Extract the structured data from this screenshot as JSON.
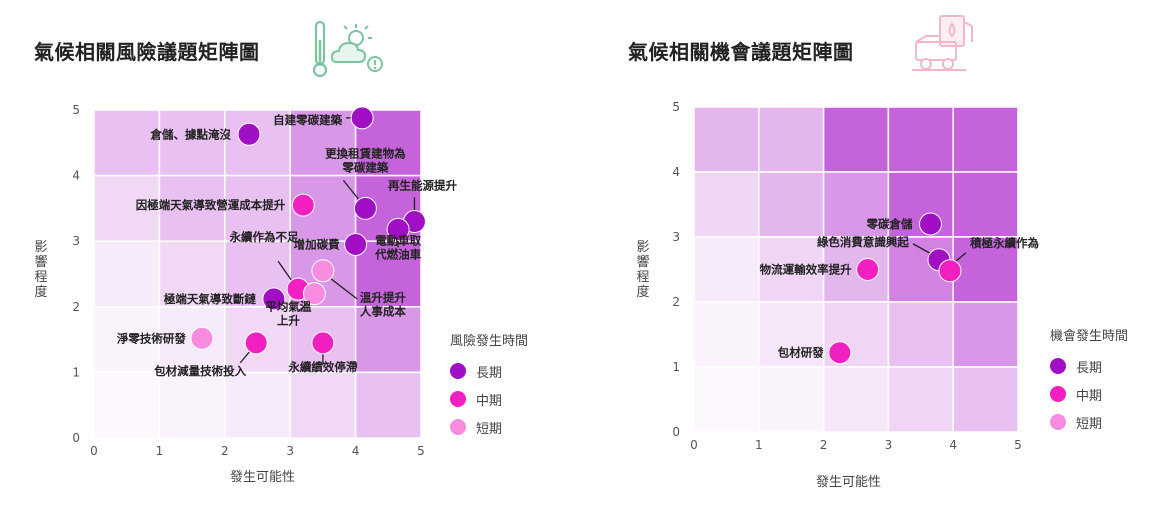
{
  "chart_data": [
    {
      "type": "scatter",
      "title": "氣候相關風險議題矩陣圖",
      "xlabel": "發生可能性",
      "ylabel": "影響程度",
      "xlim": [
        0,
        5
      ],
      "ylim": [
        0,
        5
      ],
      "x_ticks": [
        "0",
        "1",
        "2",
        "3",
        "4",
        "5"
      ],
      "y_ticks": [
        "0",
        "1",
        "2",
        "3",
        "4",
        "5"
      ],
      "legend_title": "風險發生時間",
      "legend": [
        {
          "name": "長期",
          "color": "#a10fc4"
        },
        {
          "name": "中期",
          "color": "#f21fc1"
        },
        {
          "name": "短期",
          "color": "#f78ce0"
        }
      ],
      "points": [
        {
          "label": "倉儲、據點淹沒",
          "x": 2.37,
          "y": 4.63,
          "term": "長期"
        },
        {
          "label": "自建零碳建築",
          "x": 4.1,
          "y": 4.88,
          "term": "長期"
        },
        {
          "label": "更換租賃建物為\n零碳建築",
          "x": 4.15,
          "y": 3.5,
          "term": "長期"
        },
        {
          "label": "再生能源提升",
          "x": 4.9,
          "y": 3.3,
          "term": "長期"
        },
        {
          "label": "電動車取\n代燃油車",
          "x": 4.65,
          "y": 3.18,
          "term": "長期"
        },
        {
          "label": "增加碳費",
          "x": 4.0,
          "y": 2.95,
          "term": "長期"
        },
        {
          "label": "極端天氣導致斷鏈",
          "x": 2.75,
          "y": 2.12,
          "term": "長期"
        },
        {
          "label": "因極端天氣導致營運成本提升",
          "x": 3.2,
          "y": 3.55,
          "term": "中期"
        },
        {
          "label": "永續作為不足",
          "x": 3.12,
          "y": 2.27,
          "term": "中期"
        },
        {
          "label": "包材減量技術投入",
          "x": 2.48,
          "y": 1.45,
          "term": "中期"
        },
        {
          "label": "永續績效停滯",
          "x": 3.5,
          "y": 1.45,
          "term": "中期"
        },
        {
          "label": "溫升提升\n人事成本",
          "x": 3.5,
          "y": 2.55,
          "term": "短期"
        },
        {
          "label": "平均氣溫\n上升",
          "x": 3.37,
          "y": 2.2,
          "term": "短期"
        },
        {
          "label": "淨零技術研發",
          "x": 1.65,
          "y": 1.52,
          "term": "短期"
        }
      ]
    },
    {
      "type": "scatter",
      "title": "氣候相關機會議題矩陣圖",
      "xlabel": "發生可能性",
      "ylabel": "影響程度",
      "xlim": [
        0,
        5
      ],
      "ylim": [
        0,
        5
      ],
      "x_ticks": [
        "0",
        "1",
        "2",
        "3",
        "4",
        "5"
      ],
      "y_ticks": [
        "0",
        "1",
        "2",
        "3",
        "4",
        "5"
      ],
      "legend_title": "機會發生時間",
      "legend": [
        {
          "name": "長期",
          "color": "#a10fc4"
        },
        {
          "name": "中期",
          "color": "#f21fc1"
        },
        {
          "name": "短期",
          "color": "#f78ce0"
        }
      ],
      "points": [
        {
          "label": "零碳倉儲",
          "x": 3.65,
          "y": 3.2,
          "term": "長期"
        },
        {
          "label": "綠色消費意識興起",
          "x": 3.78,
          "y": 2.65,
          "term": "長期"
        },
        {
          "label": "積極永續作為",
          "x": 3.95,
          "y": 2.48,
          "term": "中期"
        },
        {
          "label": "物流運輸效率提升",
          "x": 2.68,
          "y": 2.5,
          "term": "中期"
        },
        {
          "label": "包材研發",
          "x": 2.25,
          "y": 1.22,
          "term": "中期"
        }
      ]
    }
  ]
}
